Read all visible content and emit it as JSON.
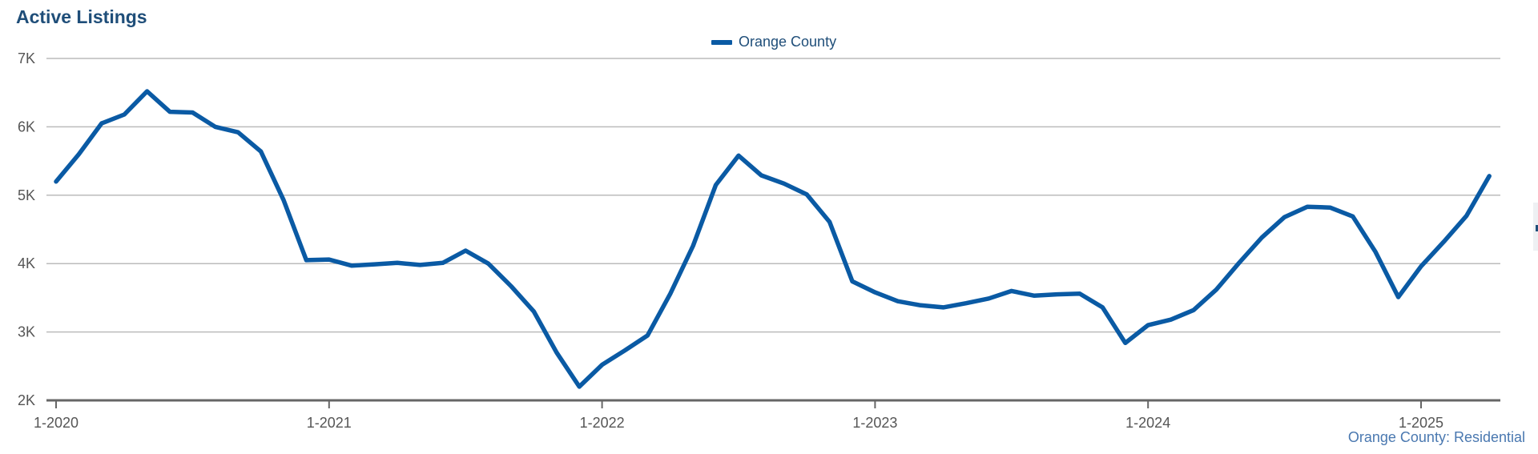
{
  "title": "Active Listings",
  "source_label": "Orange County: Residential",
  "colors": {
    "series": "#0a5aa4",
    "title": "#1f4e79",
    "grid": "#bbbbbb",
    "axis": "#666666"
  },
  "chart_data": {
    "type": "line",
    "title": "Active Listings",
    "xlabel": "",
    "ylabel": "",
    "ylim": [
      2000,
      7000
    ],
    "y_ticks": [
      2000,
      3000,
      4000,
      5000,
      6000,
      7000
    ],
    "y_tick_labels": [
      "2K",
      "3K",
      "4K",
      "5K",
      "6K",
      "7K"
    ],
    "x_tick_labels": [
      "1-2020",
      "1-2021",
      "1-2022",
      "1-2023",
      "1-2024",
      "1-2025"
    ],
    "x_range": [
      "2020-01",
      "2025-04"
    ],
    "grid": true,
    "legend_position": "top-center",
    "series": [
      {
        "name": "Orange County",
        "color": "#0a5aa4",
        "x": [
          "2020-01",
          "2020-02",
          "2020-03",
          "2020-04",
          "2020-05",
          "2020-06",
          "2020-07",
          "2020-08",
          "2020-09",
          "2020-10",
          "2020-11",
          "2020-12",
          "2021-01",
          "2021-02",
          "2021-03",
          "2021-04",
          "2021-05",
          "2021-06",
          "2021-07",
          "2021-08",
          "2021-09",
          "2021-10",
          "2021-11",
          "2021-12",
          "2022-01",
          "2022-02",
          "2022-03",
          "2022-04",
          "2022-05",
          "2022-06",
          "2022-07",
          "2022-08",
          "2022-09",
          "2022-10",
          "2022-11",
          "2022-12",
          "2023-01",
          "2023-02",
          "2023-03",
          "2023-04",
          "2023-05",
          "2023-06",
          "2023-07",
          "2023-08",
          "2023-09",
          "2023-10",
          "2023-11",
          "2023-12",
          "2024-01",
          "2024-02",
          "2024-03",
          "2024-04",
          "2024-05",
          "2024-06",
          "2024-07",
          "2024-08",
          "2024-09",
          "2024-10",
          "2024-11",
          "2024-12",
          "2025-01",
          "2025-02",
          "2025-03",
          "2025-04"
        ],
        "values": [
          5200,
          5600,
          6050,
          6180,
          6520,
          6220,
          6210,
          6000,
          5920,
          5640,
          4930,
          4050,
          4060,
          3970,
          3990,
          4010,
          3980,
          4010,
          4190,
          4000,
          3670,
          3300,
          2700,
          2200,
          2520,
          2730,
          2950,
          3560,
          4260,
          5150,
          5580,
          5290,
          5170,
          5010,
          4610,
          3740,
          3580,
          3450,
          3390,
          3360,
          3420,
          3490,
          3600,
          3530,
          3550,
          3560,
          3360,
          2840,
          3100,
          3180,
          3320,
          3620,
          4010,
          4380,
          4680,
          4830,
          4820,
          4690,
          4170,
          3510,
          3960,
          4320,
          4700,
          5280
        ]
      }
    ]
  }
}
